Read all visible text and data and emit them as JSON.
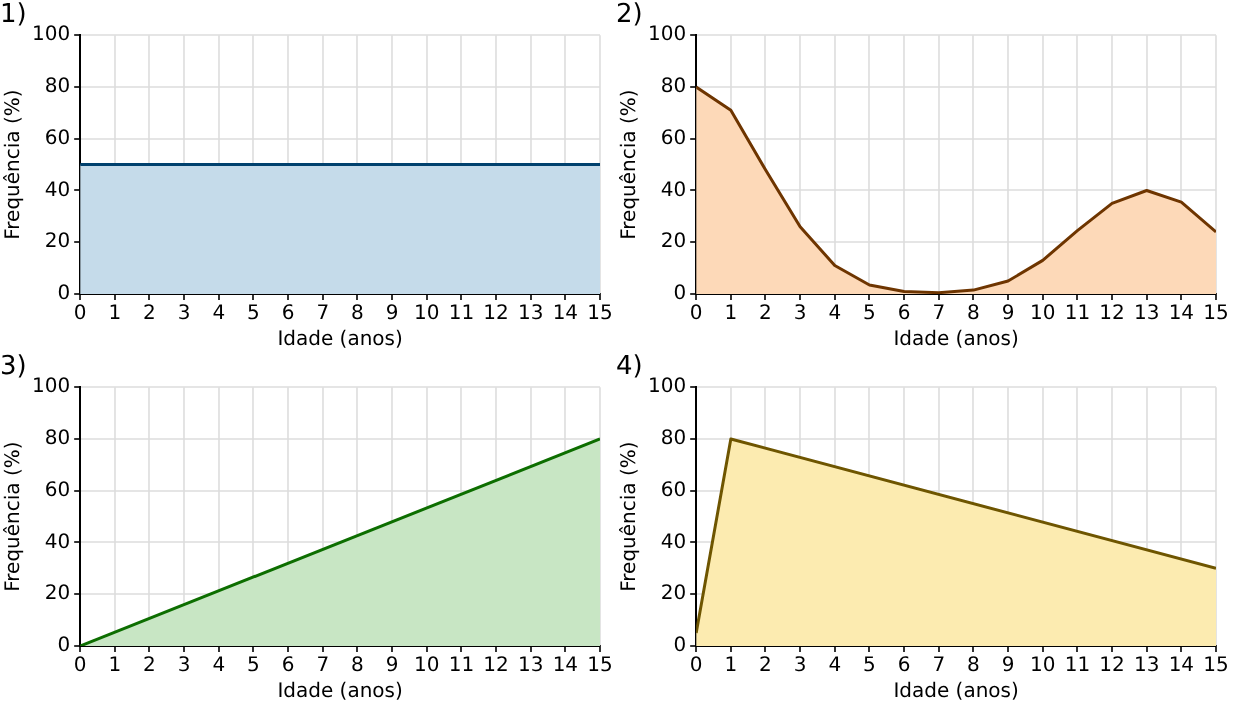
{
  "chart_data": [
    {
      "type": "area",
      "title": "1)",
      "xlabel": "Idade (anos)",
      "ylabel": "Frequência (%)",
      "series": [
        {
          "color": "#c5dbea",
          "x": [
            0,
            15
          ],
          "values": [
            50,
            50
          ]
        }
      ],
      "xlim": [
        0,
        15
      ],
      "xticks": [
        0,
        1,
        2,
        3,
        4,
        5,
        6,
        7,
        8,
        9,
        10,
        11,
        12,
        13,
        14,
        15
      ],
      "ylim": [
        0,
        100
      ],
      "yticks": [
        0,
        20,
        40,
        60,
        80,
        100
      ],
      "grid": true,
      "legend": false
    },
    {
      "type": "area",
      "title": "2)",
      "xlabel": "Idade (anos)",
      "ylabel": "Frequência (%)",
      "series": [
        {
          "color": "#fdd9b8",
          "x": [
            0,
            1,
            2,
            3,
            4,
            5,
            6,
            7,
            8,
            9,
            10,
            11,
            12,
            13,
            14,
            15
          ],
          "values": [
            80,
            71,
            48,
            26,
            11,
            3.5,
            1,
            0.5,
            1.5,
            5,
            13,
            24.5,
            35,
            40,
            35.5,
            24
          ]
        }
      ],
      "xlim": [
        0,
        15
      ],
      "xticks": [
        0,
        1,
        2,
        3,
        4,
        5,
        6,
        7,
        8,
        9,
        10,
        11,
        12,
        13,
        14,
        15
      ],
      "ylim": [
        0,
        100
      ],
      "yticks": [
        0,
        20,
        40,
        60,
        80,
        100
      ],
      "grid": true,
      "legend": false
    },
    {
      "type": "area",
      "title": "3)",
      "xlabel": "Idade (anos)",
      "ylabel": "Frequência (%)",
      "series": [
        {
          "color": "#c8e6c4",
          "x": [
            0,
            15
          ],
          "values": [
            0,
            80
          ]
        }
      ],
      "xlim": [
        0,
        15
      ],
      "xticks": [
        0,
        1,
        2,
        3,
        4,
        5,
        6,
        7,
        8,
        9,
        10,
        11,
        12,
        13,
        14,
        15
      ],
      "ylim": [
        0,
        100
      ],
      "yticks": [
        0,
        20,
        40,
        60,
        80,
        100
      ],
      "grid": true,
      "legend": false
    },
    {
      "type": "area",
      "title": "4)",
      "xlabel": "Idade (anos)",
      "ylabel": "Frequência (%)",
      "series": [
        {
          "color": "#fcebb0",
          "x": [
            0,
            1,
            15
          ],
          "values": [
            5,
            80,
            30
          ]
        }
      ],
      "xlim": [
        0,
        15
      ],
      "xticks": [
        0,
        1,
        2,
        3,
        4,
        5,
        6,
        7,
        8,
        9,
        10,
        11,
        12,
        13,
        14,
        15
      ],
      "ylim": [
        0,
        100
      ],
      "yticks": [
        0,
        20,
        40,
        60,
        80,
        100
      ],
      "grid": true,
      "legend": false
    }
  ]
}
